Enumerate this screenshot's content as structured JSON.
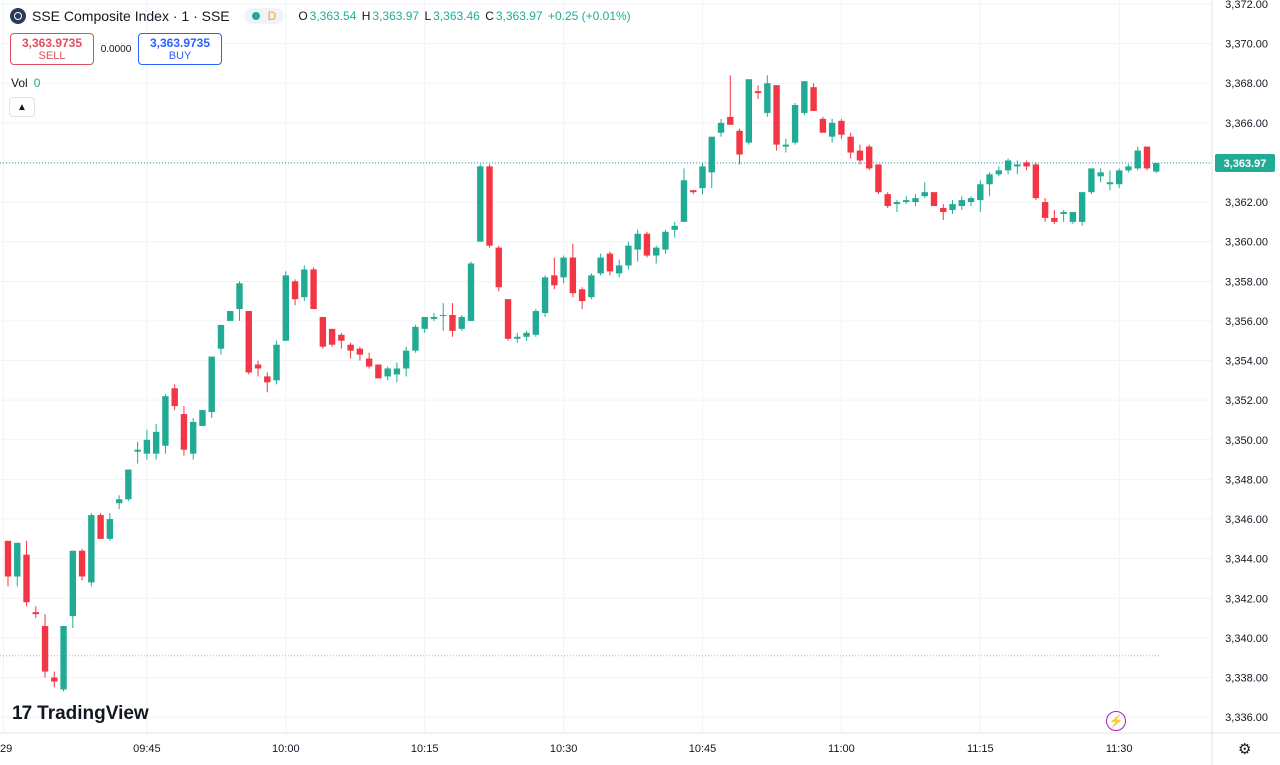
{
  "header": {
    "title": "SSE Composite Index · 1 · SSE",
    "status_letter": "D",
    "ohlc": {
      "o_label": "O",
      "o": "3,363.54",
      "h_label": "H",
      "h": "3,363.97",
      "l_label": "L",
      "l": "3,363.46",
      "c_label": "C",
      "c": "3,363.97",
      "change": "+0.25 (+0.01%)"
    }
  },
  "trade": {
    "sell_price": "3,363.9735",
    "sell_label": "SELL",
    "spread": "0.0000",
    "buy_price": "3,363.9735",
    "buy_label": "BUY"
  },
  "volume": {
    "label": "Vol",
    "value": "0"
  },
  "brand": {
    "name": "TradingView"
  },
  "colors": {
    "up": "#22ab94",
    "down": "#f23645",
    "grid": "#f0f3fa",
    "axis_text": "#131722"
  },
  "icons": {
    "logo": "sse-logo-icon",
    "collapse": "chevron-up-icon",
    "bolt": "lightning-icon",
    "settings": "gear-icon"
  },
  "chart_data": {
    "type": "candlestick",
    "interval": "1 minute",
    "y_ticks": [
      3336,
      3338,
      3340,
      3342,
      3344,
      3346,
      3348,
      3350,
      3352,
      3354,
      3356,
      3358,
      3360,
      3362,
      3364,
      3366,
      3368,
      3370,
      3372
    ],
    "y_tick_labels": [
      "3,336.00",
      "3,338.00",
      "3,340.00",
      "3,342.00",
      "3,344.00",
      "3,346.00",
      "3,348.00",
      "3,350.00",
      "3,352.00",
      "3,354.00",
      "3,356.00",
      "3,358.00",
      "3,360.00",
      "3,362.00",
      "3,364.00",
      "3,366.00",
      "3,368.00",
      "3,370.00",
      "3,372.00"
    ],
    "ylim": [
      3335.2,
      3372.2
    ],
    "x_ticks": [
      {
        "label": "29",
        "index": -0.5
      },
      {
        "label": "09:45",
        "index": 15
      },
      {
        "label": "10:00",
        "index": 30
      },
      {
        "label": "10:15",
        "index": 45
      },
      {
        "label": "10:30",
        "index": 60
      },
      {
        "label": "10:45",
        "index": 75
      },
      {
        "label": "11:00",
        "index": 90
      },
      {
        "label": "11:15",
        "index": 105
      },
      {
        "label": "11:30",
        "index": 120
      }
    ],
    "last_price": 3363.97,
    "last_price_label": "3,363.97",
    "reference_price": 3339.1,
    "candles": [
      [
        3344.9,
        3344.9,
        3342.6,
        3343.1
      ],
      [
        3343.1,
        3344.8,
        3342.6,
        3344.8
      ],
      [
        3344.2,
        3344.9,
        3341.6,
        3341.8
      ],
      [
        3341.3,
        3341.6,
        3341.0,
        3341.2
      ],
      [
        3340.6,
        3341.2,
        3338.0,
        3338.3
      ],
      [
        3338.0,
        3338.3,
        3337.5,
        3337.8
      ],
      [
        3337.4,
        3340.6,
        3337.3,
        3340.6
      ],
      [
        3341.1,
        3344.4,
        3340.5,
        3344.4
      ],
      [
        3344.4,
        3344.5,
        3342.9,
        3343.1
      ],
      [
        3342.8,
        3346.3,
        3342.6,
        3346.2
      ],
      [
        3346.2,
        3346.3,
        3345.0,
        3345.0
      ],
      [
        3345.0,
        3346.3,
        3344.9,
        3346.0
      ],
      [
        3346.8,
        3347.2,
        3346.5,
        3347.0
      ],
      [
        3347.0,
        3348.5,
        3346.9,
        3348.5
      ],
      [
        3349.4,
        3349.9,
        3348.8,
        3349.5
      ],
      [
        3349.3,
        3350.5,
        3349.0,
        3350.0
      ],
      [
        3349.3,
        3350.8,
        3349.0,
        3350.4
      ],
      [
        3349.7,
        3352.3,
        3349.3,
        3352.2
      ],
      [
        3352.6,
        3352.8,
        3351.5,
        3351.7
      ],
      [
        3351.3,
        3351.7,
        3349.2,
        3349.5
      ],
      [
        3349.3,
        3351.1,
        3349.0,
        3350.9
      ],
      [
        3350.7,
        3351.5,
        3350.7,
        3351.5
      ],
      [
        3351.4,
        3354.2,
        3351.1,
        3354.2
      ],
      [
        3354.6,
        3355.8,
        3354.3,
        3355.8
      ],
      [
        3356.0,
        3356.5,
        3356.0,
        3356.5
      ],
      [
        3356.6,
        3358.0,
        3356.0,
        3357.9
      ],
      [
        3356.5,
        3356.5,
        3353.3,
        3353.4
      ],
      [
        3353.8,
        3354.0,
        3353.2,
        3353.6
      ],
      [
        3353.2,
        3353.4,
        3352.4,
        3352.9
      ],
      [
        3353.0,
        3355.0,
        3352.8,
        3354.8
      ],
      [
        3355.0,
        3358.5,
        3355.0,
        3358.3
      ],
      [
        3358.0,
        3358.1,
        3356.8,
        3357.1
      ],
      [
        3357.2,
        3358.8,
        3357.0,
        3358.6
      ],
      [
        3358.6,
        3358.7,
        3356.6,
        3356.6
      ],
      [
        3356.2,
        3356.2,
        3354.6,
        3354.7
      ],
      [
        3355.6,
        3355.6,
        3354.7,
        3354.8
      ],
      [
        3355.3,
        3355.4,
        3354.6,
        3355.0
      ],
      [
        3354.8,
        3354.9,
        3354.1,
        3354.5
      ],
      [
        3354.6,
        3354.7,
        3354.0,
        3354.3
      ],
      [
        3354.1,
        3354.4,
        3353.6,
        3353.7
      ],
      [
        3353.8,
        3353.8,
        3353.1,
        3353.1
      ],
      [
        3353.2,
        3353.7,
        3353.0,
        3353.6
      ],
      [
        3353.3,
        3353.9,
        3352.9,
        3353.6
      ],
      [
        3353.6,
        3354.7,
        3353.2,
        3354.5
      ],
      [
        3354.5,
        3355.8,
        3354.4,
        3355.7
      ],
      [
        3355.6,
        3356.2,
        3355.4,
        3356.2
      ],
      [
        3356.1,
        3356.4,
        3356.0,
        3356.2
      ],
      [
        3356.3,
        3356.9,
        3355.5,
        3356.3
      ],
      [
        3356.3,
        3356.9,
        3355.2,
        3355.5
      ],
      [
        3355.6,
        3356.3,
        3355.5,
        3356.2
      ],
      [
        3356.0,
        3359.0,
        3356.0,
        3358.9
      ],
      [
        3360.0,
        3363.9,
        3360.0,
        3363.8
      ],
      [
        3363.8,
        3363.9,
        3359.7,
        3359.8
      ],
      [
        3359.7,
        3359.8,
        3357.5,
        3357.7
      ],
      [
        3357.1,
        3357.1,
        3355.0,
        3355.1
      ],
      [
        3355.1,
        3355.4,
        3354.9,
        3355.2
      ],
      [
        3355.2,
        3355.5,
        3355.0,
        3355.4
      ],
      [
        3355.3,
        3356.6,
        3355.2,
        3356.5
      ],
      [
        3356.4,
        3358.3,
        3356.2,
        3358.2
      ],
      [
        3358.3,
        3359.2,
        3357.6,
        3357.8
      ],
      [
        3358.2,
        3359.3,
        3357.9,
        3359.2
      ],
      [
        3359.2,
        3359.9,
        3357.2,
        3357.4
      ],
      [
        3357.6,
        3357.7,
        3356.6,
        3357.0
      ],
      [
        3357.2,
        3358.4,
        3357.1,
        3358.3
      ],
      [
        3358.4,
        3359.4,
        3358.3,
        3359.2
      ],
      [
        3359.4,
        3359.5,
        3358.3,
        3358.5
      ],
      [
        3358.4,
        3359.1,
        3358.2,
        3358.8
      ],
      [
        3358.8,
        3360.0,
        3358.6,
        3359.8
      ],
      [
        3359.6,
        3360.6,
        3359.0,
        3360.4
      ],
      [
        3360.4,
        3360.5,
        3359.2,
        3359.3
      ],
      [
        3359.3,
        3359.8,
        3358.9,
        3359.7
      ],
      [
        3359.6,
        3360.6,
        3359.4,
        3360.5
      ],
      [
        3360.6,
        3361.0,
        3360.2,
        3360.8
      ],
      [
        3361.0,
        3363.7,
        3361.0,
        3363.1
      ],
      [
        3362.6,
        3362.6,
        3362.4,
        3362.5
      ],
      [
        3362.7,
        3364.0,
        3362.4,
        3363.8
      ],
      [
        3363.5,
        3365.3,
        3362.7,
        3365.3
      ],
      [
        3365.5,
        3366.2,
        3365.3,
        3366.0
      ],
      [
        3366.3,
        3368.4,
        3366.1,
        3365.9
      ],
      [
        3365.6,
        3365.7,
        3363.9,
        3364.4
      ],
      [
        3365.0,
        3368.2,
        3364.9,
        3368.2
      ],
      [
        3367.6,
        3367.9,
        3367.2,
        3367.5
      ],
      [
        3366.5,
        3368.4,
        3366.3,
        3368.0
      ],
      [
        3367.9,
        3367.9,
        3364.6,
        3364.9
      ],
      [
        3364.8,
        3365.2,
        3364.5,
        3364.9
      ],
      [
        3365.0,
        3367.0,
        3364.9,
        3366.9
      ],
      [
        3366.5,
        3368.1,
        3366.4,
        3368.1
      ],
      [
        3367.8,
        3368.0,
        3366.6,
        3366.6
      ],
      [
        3366.2,
        3366.3,
        3365.5,
        3365.5
      ],
      [
        3365.3,
        3366.2,
        3365.0,
        3366.0
      ],
      [
        3366.1,
        3366.2,
        3365.2,
        3365.4
      ],
      [
        3365.3,
        3365.5,
        3364.2,
        3364.5
      ],
      [
        3364.6,
        3364.9,
        3363.9,
        3364.1
      ],
      [
        3364.8,
        3364.9,
        3363.6,
        3363.7
      ],
      [
        3363.9,
        3363.9,
        3362.4,
        3362.5
      ],
      [
        3362.4,
        3362.5,
        3361.7,
        3361.8
      ],
      [
        3361.9,
        3362.1,
        3361.5,
        3362.0
      ],
      [
        3362.0,
        3362.3,
        3361.9,
        3362.1
      ],
      [
        3362.0,
        3362.4,
        3361.8,
        3362.2
      ],
      [
        3362.3,
        3363.0,
        3362.2,
        3362.5
      ],
      [
        3362.5,
        3362.5,
        3361.8,
        3361.8
      ],
      [
        3361.7,
        3361.9,
        3361.1,
        3361.5
      ],
      [
        3361.6,
        3362.1,
        3361.4,
        3361.9
      ],
      [
        3361.8,
        3362.3,
        3361.6,
        3362.1
      ],
      [
        3362.0,
        3362.3,
        3361.8,
        3362.2
      ],
      [
        3362.1,
        3363.1,
        3361.5,
        3362.9
      ],
      [
        3362.9,
        3363.5,
        3362.3,
        3363.4
      ],
      [
        3363.4,
        3363.8,
        3363.3,
        3363.6
      ],
      [
        3363.6,
        3364.2,
        3363.4,
        3364.1
      ],
      [
        3363.8,
        3364.1,
        3363.4,
        3363.9
      ],
      [
        3364.0,
        3364.1,
        3363.6,
        3363.8
      ],
      [
        3363.9,
        3364.0,
        3362.1,
        3362.2
      ],
      [
        3362.0,
        3362.2,
        3361.0,
        3361.2
      ],
      [
        3361.2,
        3361.6,
        3360.9,
        3361.0
      ],
      [
        3361.4,
        3361.6,
        3361.0,
        3361.5
      ],
      [
        3361.0,
        3361.5,
        3360.9,
        3361.5
      ],
      [
        3361.0,
        3362.5,
        3360.8,
        3362.5
      ],
      [
        3362.5,
        3363.7,
        3362.4,
        3363.7
      ],
      [
        3363.3,
        3363.7,
        3363.0,
        3363.5
      ],
      [
        3362.9,
        3363.6,
        3362.6,
        3363.0
      ],
      [
        3362.9,
        3363.7,
        3362.7,
        3363.6
      ],
      [
        3363.6,
        3363.9,
        3363.5,
        3363.8
      ],
      [
        3363.7,
        3364.8,
        3363.6,
        3364.6
      ],
      [
        3364.8,
        3364.8,
        3363.6,
        3363.7
      ],
      [
        3363.54,
        3363.97,
        3363.46,
        3363.97
      ]
    ]
  }
}
